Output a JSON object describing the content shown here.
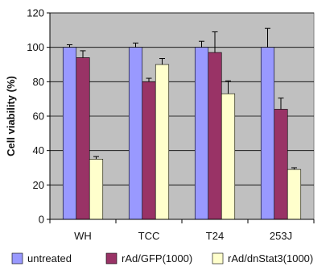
{
  "chart_data": {
    "type": "bar",
    "ylabel": "Cell viability (%)",
    "ylim": [
      0,
      120
    ],
    "yticks": [
      "0",
      "20",
      "40",
      "60",
      "80",
      "100",
      "120"
    ],
    "ytick_values": [
      0,
      20,
      40,
      60,
      80,
      100,
      120
    ],
    "grid": "horizontal",
    "legend_position": "bottom",
    "categories": [
      "WH",
      "TCC",
      "T24",
      "253J"
    ],
    "series": [
      {
        "name": "untreated",
        "color": "#9999ff",
        "values": [
          100,
          100,
          100,
          100
        ],
        "errors": [
          1.5,
          2.5,
          3.5,
          11
        ]
      },
      {
        "name": "rAd/GFP(1000)",
        "color": "#993366",
        "values": [
          94,
          80,
          97,
          64
        ],
        "errors": [
          4,
          2,
          12,
          6.5
        ]
      },
      {
        "name": "rAd/dnStat3(1000)",
        "color": "#ffffcc",
        "values": [
          35,
          90,
          73,
          29
        ],
        "errors": [
          1.5,
          3.5,
          7.5,
          1
        ]
      }
    ],
    "plot_background": "#c0c0c0"
  }
}
